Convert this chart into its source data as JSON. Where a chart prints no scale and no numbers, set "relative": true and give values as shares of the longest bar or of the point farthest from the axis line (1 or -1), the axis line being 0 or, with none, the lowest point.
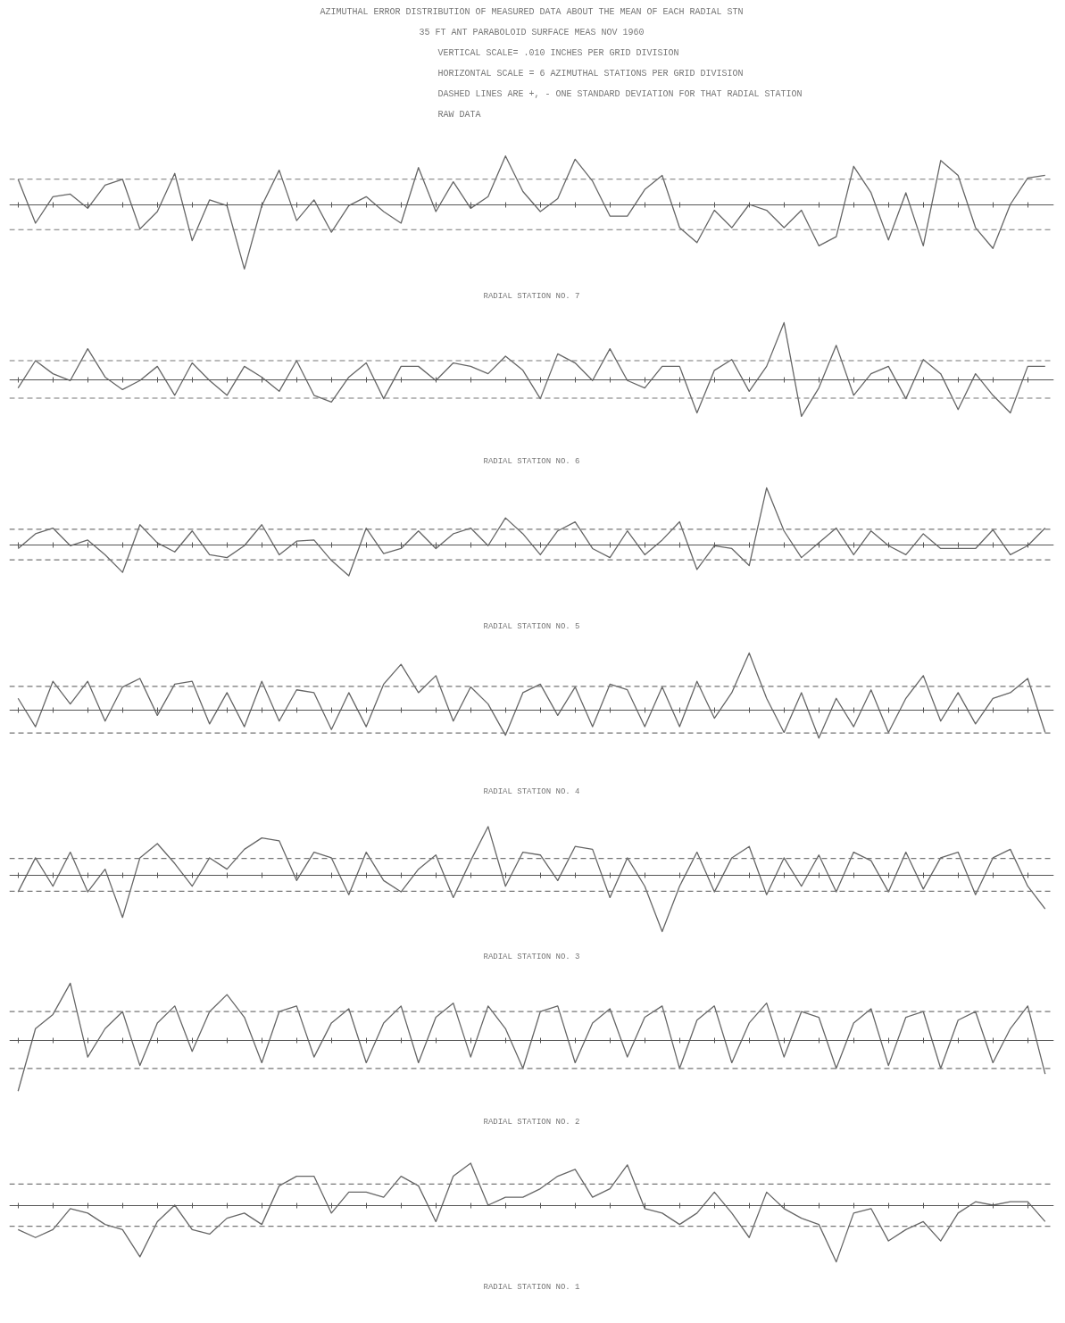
{
  "chart_data": [
    {
      "type": "line",
      "relative": true,
      "title": "AZIMUTHAL ERROR DISTRIBUTION OF MEASURED DATA ABOUT THE MEAN OF EACH RADIAL STN",
      "subtitle": "35 FT ANT PARABOLOID SURFACE MEAS NOV 1960",
      "annotations": [
        "VERTICAL SCALE= .010 INCHES PER GRID DIVISION",
        "HORIZONTAL SCALE = 6 AZIMUTHAL STATIONS PER GRID DIVISION",
        "DASHED LINES ARE +, - ONE STANDARD DEVIATION FOR THAT RADIAL STATION",
        "RAW DATA"
      ],
      "xlabel": "RADIAL STATION NO. 7",
      "categories": [
        null,
        null,
        null,
        null,
        null,
        null,
        null,
        null,
        null,
        null,
        null,
        null,
        null,
        null,
        null,
        null,
        null,
        null,
        null,
        null,
        null,
        null,
        null,
        null,
        null,
        null,
        null,
        null,
        null,
        null,
        null,
        null,
        null,
        null,
        null,
        null,
        null,
        null,
        null,
        null,
        null,
        null,
        null,
        null,
        null,
        null,
        null,
        null,
        null,
        null,
        null,
        null,
        null,
        null,
        null,
        null,
        null,
        null,
        null,
        null
      ],
      "series": [
        {
          "color": "#666666",
          "values": [
            0.39,
            -0.29,
            0.12,
            0.16,
            -0.06,
            0.3,
            0.39,
            -0.38,
            -0.11,
            0.48,
            -0.56,
            0.07,
            -0.02,
            -1.0,
            -0.02,
            0.53,
            -0.25,
            0.07,
            -0.43,
            -0.02,
            0.12,
            -0.11,
            -0.29,
            0.57,
            -0.11,
            0.35,
            -0.06,
            0.12,
            0.75,
            0.2,
            -0.11,
            0.09,
            0.7,
            0.36,
            -0.18,
            -0.18,
            0.23,
            0.45,
            -0.36,
            -0.59,
            -0.09,
            -0.36,
            0,
            -0.09,
            -0.36,
            -0.09,
            -0.64,
            -0.5,
            0.59,
            0.18,
            -0.55,
            0.18,
            -0.64,
            0.68,
            0.45,
            -0.36,
            -0.68,
            0,
            0.41,
            0.45
          ]
        }
      ],
      "ref_lines": [
        {
          "axis": "y",
          "value": 0.39,
          "line_style": "dashed",
          "color": "#777777"
        },
        {
          "axis": "y",
          "value": -0.39,
          "line_style": "dashed",
          "color": "#777777"
        }
      ]
    },
    {
      "type": "line",
      "relative": true,
      "xlabel": "RADIAL STATION NO. 6",
      "categories": [
        null,
        null,
        null,
        null,
        null,
        null,
        null,
        null,
        null,
        null,
        null,
        null,
        null,
        null,
        null,
        null,
        null,
        null,
        null,
        null,
        null,
        null,
        null,
        null,
        null,
        null,
        null,
        null,
        null,
        null,
        null,
        null,
        null,
        null,
        null,
        null,
        null,
        null,
        null,
        null,
        null,
        null,
        null,
        null,
        null,
        null,
        null,
        null,
        null,
        null,
        null,
        null,
        null,
        null,
        null,
        null,
        null,
        null,
        null,
        null
      ],
      "series": [
        {
          "color": "#666666",
          "values": [
            -0.15,
            0.33,
            0.1,
            -0.02,
            0.54,
            0.04,
            -0.18,
            -0.02,
            0.23,
            -0.28,
            0.29,
            -0.02,
            -0.28,
            0.23,
            0.04,
            -0.21,
            0.33,
            -0.28,
            -0.4,
            0.04,
            0.29,
            -0.34,
            0.23,
            0.23,
            -0.02,
            0.29,
            0.23,
            0.1,
            0.41,
            0.16,
            -0.34,
            0.45,
            0.29,
            -0.02,
            0.54,
            -0.02,
            -0.15,
            0.23,
            0.23,
            -0.59,
            0.16,
            0.35,
            -0.21,
            0.23,
            1.0,
            -0.65,
            -0.15,
            0.6,
            -0.28,
            0.1,
            0.23,
            -0.34,
            0.35,
            0.1,
            -0.53,
            0.1,
            -0.28,
            -0.59,
            0.23,
            0.23
          ]
        }
      ],
      "ref_lines": [
        {
          "axis": "y",
          "value": 0.33,
          "line_style": "dashed",
          "color": "#777777"
        },
        {
          "axis": "y",
          "value": -0.33,
          "line_style": "dashed",
          "color": "#777777"
        }
      ]
    },
    {
      "type": "line",
      "relative": true,
      "xlabel": "RADIAL STATION NO. 5",
      "categories": [
        null,
        null,
        null,
        null,
        null,
        null,
        null,
        null,
        null,
        null,
        null,
        null,
        null,
        null,
        null,
        null,
        null,
        null,
        null,
        null,
        null,
        null,
        null,
        null,
        null,
        null,
        null,
        null,
        null,
        null,
        null,
        null,
        null,
        null,
        null,
        null,
        null,
        null,
        null,
        null,
        null,
        null,
        null,
        null,
        null,
        null,
        null,
        null,
        null,
        null,
        null,
        null,
        null,
        null,
        null,
        null,
        null,
        null,
        null,
        null
      ],
      "series": [
        {
          "color": "#666666",
          "values": [
            -0.07,
            0.19,
            0.29,
            -0.02,
            0.08,
            -0.18,
            -0.49,
            0.35,
            0.03,
            -0.13,
            0.24,
            -0.18,
            -0.23,
            -0.02,
            0.35,
            -0.18,
            0.06,
            0.08,
            -0.28,
            -0.55,
            0.29,
            -0.16,
            -0.07,
            0.24,
            -0.07,
            0.19,
            0.29,
            -0.02,
            0.47,
            0.19,
            -0.18,
            0.24,
            0.4,
            -0.07,
            -0.23,
            0.24,
            -0.18,
            0.08,
            0.4,
            -0.44,
            -0.02,
            -0.07,
            -0.37,
            1.0,
            0.24,
            -0.23,
            0.03,
            0.29,
            -0.18,
            0.24,
            -0.02,
            -0.18,
            0.19,
            -0.07,
            -0.07,
            -0.07,
            0.26,
            -0.18,
            -0.02,
            0.29
          ]
        }
      ],
      "ref_lines": [
        {
          "axis": "y",
          "value": 0.27,
          "line_style": "dashed",
          "color": "#777777"
        },
        {
          "axis": "y",
          "value": -0.27,
          "line_style": "dashed",
          "color": "#777777"
        }
      ]
    },
    {
      "type": "line",
      "relative": true,
      "xlabel": "RADIAL STATION NO. 4",
      "categories": [
        null,
        null,
        null,
        null,
        null,
        null,
        null,
        null,
        null,
        null,
        null,
        null,
        null,
        null,
        null,
        null,
        null,
        null,
        null,
        null,
        null,
        null,
        null,
        null,
        null,
        null,
        null,
        null,
        null,
        null,
        null,
        null,
        null,
        null,
        null,
        null,
        null,
        null,
        null,
        null,
        null,
        null,
        null,
        null,
        null,
        null,
        null,
        null,
        null,
        null,
        null,
        null,
        null,
        null,
        null,
        null,
        null,
        null,
        null,
        null
      ],
      "series": [
        {
          "color": "#666666",
          "values": [
            0.2,
            -0.3,
            0.5,
            0.1,
            0.5,
            -0.2,
            0.4,
            0.55,
            -0.1,
            0.45,
            0.5,
            -0.25,
            0.3,
            -0.3,
            0.5,
            -0.2,
            0.35,
            0.3,
            -0.35,
            0.3,
            -0.3,
            0.45,
            0.8,
            0.3,
            0.6,
            -0.2,
            0.4,
            0.1,
            -0.45,
            0.3,
            0.45,
            -0.1,
            0.4,
            -0.3,
            0.45,
            0.35,
            -0.3,
            0.4,
            -0.3,
            0.5,
            -0.15,
            0.3,
            1.0,
            0.2,
            -0.4,
            0.3,
            -0.5,
            0.2,
            -0.3,
            0.35,
            -0.4,
            0.2,
            0.6,
            -0.2,
            0.3,
            -0.25,
            0.2,
            0.3,
            0.55,
            -0.4
          ]
        }
      ],
      "ref_lines": [
        {
          "axis": "y",
          "value": 0.41,
          "line_style": "dashed",
          "color": "#777777"
        },
        {
          "axis": "y",
          "value": -0.41,
          "line_style": "dashed",
          "color": "#777777"
        }
      ]
    },
    {
      "type": "line",
      "relative": true,
      "xlabel": "RADIAL STATION NO. 3",
      "categories": [
        null,
        null,
        null,
        null,
        null,
        null,
        null,
        null,
        null,
        null,
        null,
        null,
        null,
        null,
        null,
        null,
        null,
        null,
        null,
        null,
        null,
        null,
        null,
        null,
        null,
        null,
        null,
        null,
        null,
        null,
        null,
        null,
        null,
        null,
        null,
        null,
        null,
        null,
        null,
        null,
        null,
        null,
        null,
        null,
        null,
        null,
        null,
        null,
        null,
        null,
        null,
        null,
        null,
        null,
        null,
        null,
        null,
        null,
        null,
        null
      ],
      "series": [
        {
          "color": "#666666",
          "values": [
            -0.3,
            0.3,
            -0.2,
            0.4,
            -0.3,
            0.1,
            -0.75,
            0.3,
            0.55,
            0.2,
            -0.2,
            0.3,
            0.1,
            0.45,
            0.65,
            0.6,
            -0.1,
            0.4,
            0.3,
            -0.35,
            0.4,
            -0.1,
            -0.3,
            0.1,
            0.35,
            -0.4,
            0.25,
            0.85,
            -0.2,
            0.4,
            0.35,
            -0.1,
            0.5,
            0.45,
            -0.4,
            0.3,
            -0.2,
            -1.0,
            -0.2,
            0.4,
            -0.3,
            0.3,
            0.5,
            -0.35,
            0.3,
            -0.2,
            0.35,
            -0.3,
            0.4,
            0.25,
            -0.3,
            0.4,
            -0.25,
            0.3,
            0.4,
            -0.35,
            0.3,
            0.45,
            -0.2,
            -0.6
          ]
        }
      ],
      "ref_lines": [
        {
          "axis": "y",
          "value": 0.29,
          "line_style": "dashed",
          "color": "#777777"
        },
        {
          "axis": "y",
          "value": -0.29,
          "line_style": "dashed",
          "color": "#777777"
        }
      ]
    },
    {
      "type": "line",
      "relative": true,
      "xlabel": "RADIAL STATION NO. 2",
      "categories": [
        null,
        null,
        null,
        null,
        null,
        null,
        null,
        null,
        null,
        null,
        null,
        null,
        null,
        null,
        null,
        null,
        null,
        null,
        null,
        null,
        null,
        null,
        null,
        null,
        null,
        null,
        null,
        null,
        null,
        null,
        null,
        null,
        null,
        null,
        null,
        null,
        null,
        null,
        null,
        null,
        null,
        null,
        null,
        null,
        null,
        null,
        null,
        null,
        null,
        null,
        null,
        null,
        null,
        null,
        null,
        null,
        null,
        null,
        null,
        null
      ],
      "series": [
        {
          "color": "#666666",
          "values": [
            -0.9,
            0.2,
            0.45,
            1.0,
            -0.3,
            0.2,
            0.5,
            -0.45,
            0.3,
            0.6,
            -0.2,
            0.5,
            0.8,
            0.4,
            -0.4,
            0.5,
            0.6,
            -0.3,
            0.3,
            0.55,
            -0.4,
            0.3,
            0.6,
            -0.4,
            0.4,
            0.65,
            -0.3,
            0.6,
            0.2,
            -0.5,
            0.5,
            0.6,
            -0.4,
            0.3,
            0.55,
            -0.3,
            0.4,
            0.6,
            -0.5,
            0.35,
            0.6,
            -0.4,
            0.3,
            0.65,
            -0.3,
            0.5,
            0.4,
            -0.5,
            0.3,
            0.55,
            -0.45,
            0.4,
            0.5,
            -0.5,
            0.35,
            0.5,
            -0.4,
            0.2,
            0.6,
            -0.6
          ]
        }
      ],
      "ref_lines": [
        {
          "axis": "y",
          "value": 0.5,
          "line_style": "dashed",
          "color": "#777777"
        },
        {
          "axis": "y",
          "value": -0.5,
          "line_style": "dashed",
          "color": "#777777"
        }
      ]
    },
    {
      "type": "line",
      "relative": true,
      "xlabel": "RADIAL STATION NO. 1",
      "categories": [
        null,
        null,
        null,
        null,
        null,
        null,
        null,
        null,
        null,
        null,
        null,
        null,
        null,
        null,
        null,
        null,
        null,
        null,
        null,
        null,
        null,
        null,
        null,
        null,
        null,
        null,
        null,
        null,
        null,
        null,
        null,
        null,
        null,
        null,
        null,
        null,
        null,
        null,
        null,
        null,
        null,
        null,
        null,
        null,
        null,
        null,
        null,
        null,
        null,
        null,
        null,
        null,
        null,
        null,
        null,
        null,
        null,
        null,
        null,
        null
      ],
      "series": [
        {
          "color": "#666666",
          "values": [
            -0.43,
            -0.57,
            -0.43,
            -0.06,
            -0.14,
            -0.34,
            -0.43,
            -0.91,
            -0.29,
            0,
            -0.43,
            -0.51,
            -0.23,
            -0.14,
            -0.34,
            0.34,
            0.51,
            0.51,
            -0.14,
            0.23,
            0.23,
            0.14,
            0.51,
            0.34,
            -0.29,
            0.51,
            0.74,
            0,
            0.14,
            0.14,
            0.29,
            0.51,
            0.63,
            0.14,
            0.29,
            0.71,
            -0.06,
            -0.14,
            -0.34,
            -0.14,
            0.23,
            -0.14,
            -0.57,
            0.23,
            -0.06,
            -0.23,
            -0.34,
            -1.0,
            -0.14,
            -0.06,
            -0.63,
            -0.43,
            -0.29,
            -0.63,
            -0.14,
            0.06,
            0,
            0.06,
            0.06,
            -0.29
          ]
        }
      ],
      "ref_lines": [
        {
          "axis": "y",
          "value": 0.37,
          "line_style": "dashed",
          "color": "#777777"
        },
        {
          "axis": "y",
          "value": -0.37,
          "line_style": "dashed",
          "color": "#777777"
        }
      ]
    }
  ]
}
